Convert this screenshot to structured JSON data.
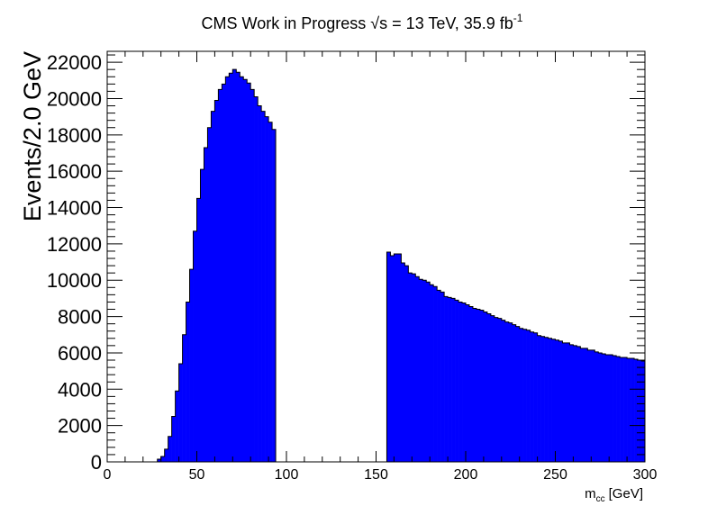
{
  "header": {
    "title_main": "CMS Work in Progress",
    "title_sqrt": "√s",
    "title_energy": "= 13 TeV, 35.9 fb",
    "title_exp": "-1"
  },
  "axes": {
    "ylabel": "Events/2.0 GeV",
    "xlabel_base": "m",
    "xlabel_sub": "cc",
    "xlabel_unit": "[GeV]"
  },
  "chart_data": {
    "type": "bar",
    "title": "CMS Work in Progress √s = 13 TeV, 35.9 fb-1",
    "xlabel": "m_cc [GeV]",
    "ylabel": "Events/2.0 GeV",
    "xlim": [
      0,
      300
    ],
    "ylim": [
      0,
      22600
    ],
    "bin_width": 2,
    "x_ticks": [
      0,
      50,
      100,
      150,
      200,
      250,
      300
    ],
    "y_ticks": [
      0,
      2000,
      4000,
      6000,
      8000,
      10000,
      12000,
      14000,
      16000,
      18000,
      20000,
      22000
    ],
    "fill_color": "#0000ff",
    "grid": false,
    "legend": "none",
    "bins": [
      {
        "x": 28,
        "y": 150
      },
      {
        "x": 30,
        "y": 300
      },
      {
        "x": 32,
        "y": 700
      },
      {
        "x": 34,
        "y": 1400
      },
      {
        "x": 36,
        "y": 2500
      },
      {
        "x": 38,
        "y": 3900
      },
      {
        "x": 40,
        "y": 5400
      },
      {
        "x": 42,
        "y": 7000
      },
      {
        "x": 44,
        "y": 8800
      },
      {
        "x": 46,
        "y": 10600
      },
      {
        "x": 48,
        "y": 12700
      },
      {
        "x": 50,
        "y": 14500
      },
      {
        "x": 52,
        "y": 16100
      },
      {
        "x": 54,
        "y": 17300
      },
      {
        "x": 56,
        "y": 18400
      },
      {
        "x": 58,
        "y": 19300
      },
      {
        "x": 60,
        "y": 19900
      },
      {
        "x": 62,
        "y": 20500
      },
      {
        "x": 64,
        "y": 20800
      },
      {
        "x": 66,
        "y": 21200
      },
      {
        "x": 68,
        "y": 21400
      },
      {
        "x": 70,
        "y": 21600
      },
      {
        "x": 72,
        "y": 21450
      },
      {
        "x": 74,
        "y": 21200
      },
      {
        "x": 76,
        "y": 21050
      },
      {
        "x": 78,
        "y": 20850
      },
      {
        "x": 80,
        "y": 20500
      },
      {
        "x": 82,
        "y": 20100
      },
      {
        "x": 84,
        "y": 19600
      },
      {
        "x": 86,
        "y": 19300
      },
      {
        "x": 88,
        "y": 19000
      },
      {
        "x": 90,
        "y": 18700
      },
      {
        "x": 92,
        "y": 18300
      },
      {
        "x": 156,
        "y": 11550
      },
      {
        "x": 158,
        "y": 11350
      },
      {
        "x": 160,
        "y": 11450
      },
      {
        "x": 162,
        "y": 11450
      },
      {
        "x": 164,
        "y": 10950
      },
      {
        "x": 166,
        "y": 10800
      },
      {
        "x": 168,
        "y": 10400
      },
      {
        "x": 170,
        "y": 10350
      },
      {
        "x": 172,
        "y": 10200
      },
      {
        "x": 174,
        "y": 10050
      },
      {
        "x": 176,
        "y": 10000
      },
      {
        "x": 178,
        "y": 9900
      },
      {
        "x": 180,
        "y": 9750
      },
      {
        "x": 182,
        "y": 9650
      },
      {
        "x": 184,
        "y": 9450
      },
      {
        "x": 186,
        "y": 9350
      },
      {
        "x": 188,
        "y": 9100
      },
      {
        "x": 190,
        "y": 9050
      },
      {
        "x": 192,
        "y": 9000
      },
      {
        "x": 194,
        "y": 8900
      },
      {
        "x": 196,
        "y": 8800
      },
      {
        "x": 198,
        "y": 8750
      },
      {
        "x": 200,
        "y": 8650
      },
      {
        "x": 202,
        "y": 8550
      },
      {
        "x": 204,
        "y": 8450
      },
      {
        "x": 206,
        "y": 8400
      },
      {
        "x": 208,
        "y": 8350
      },
      {
        "x": 210,
        "y": 8250
      },
      {
        "x": 212,
        "y": 8150
      },
      {
        "x": 214,
        "y": 8050
      },
      {
        "x": 216,
        "y": 7950
      },
      {
        "x": 218,
        "y": 7900
      },
      {
        "x": 220,
        "y": 7800
      },
      {
        "x": 222,
        "y": 7700
      },
      {
        "x": 224,
        "y": 7650
      },
      {
        "x": 226,
        "y": 7550
      },
      {
        "x": 228,
        "y": 7450
      },
      {
        "x": 230,
        "y": 7350
      },
      {
        "x": 232,
        "y": 7300
      },
      {
        "x": 234,
        "y": 7250
      },
      {
        "x": 236,
        "y": 7150
      },
      {
        "x": 238,
        "y": 7100
      },
      {
        "x": 240,
        "y": 6950
      },
      {
        "x": 242,
        "y": 6900
      },
      {
        "x": 244,
        "y": 6850
      },
      {
        "x": 246,
        "y": 6800
      },
      {
        "x": 248,
        "y": 6750
      },
      {
        "x": 250,
        "y": 6700
      },
      {
        "x": 252,
        "y": 6650
      },
      {
        "x": 254,
        "y": 6550
      },
      {
        "x": 256,
        "y": 6550
      },
      {
        "x": 258,
        "y": 6450
      },
      {
        "x": 260,
        "y": 6400
      },
      {
        "x": 262,
        "y": 6350
      },
      {
        "x": 264,
        "y": 6250
      },
      {
        "x": 266,
        "y": 6250
      },
      {
        "x": 268,
        "y": 6150
      },
      {
        "x": 270,
        "y": 6150
      },
      {
        "x": 272,
        "y": 6050
      },
      {
        "x": 274,
        "y": 6000
      },
      {
        "x": 276,
        "y": 5950
      },
      {
        "x": 278,
        "y": 5900
      },
      {
        "x": 280,
        "y": 5900
      },
      {
        "x": 282,
        "y": 5850
      },
      {
        "x": 284,
        "y": 5800
      },
      {
        "x": 286,
        "y": 5750
      },
      {
        "x": 288,
        "y": 5750
      },
      {
        "x": 290,
        "y": 5700
      },
      {
        "x": 292,
        "y": 5700
      },
      {
        "x": 294,
        "y": 5650
      },
      {
        "x": 296,
        "y": 5600
      },
      {
        "x": 298,
        "y": 5550
      }
    ]
  }
}
